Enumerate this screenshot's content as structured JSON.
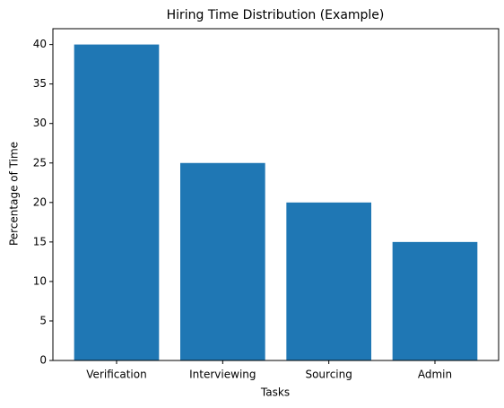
{
  "chart_data": {
    "type": "bar",
    "title": "Hiring Time Distribution (Example)",
    "x_label": "Tasks",
    "y_label": "Percentage of Time",
    "categories": [
      "Verification",
      "Interviewing",
      "Sourcing",
      "Admin"
    ],
    "values": [
      40,
      25,
      20,
      15
    ],
    "color": "#1f77b4",
    "ylim": [
      0,
      42
    ],
    "yticks": [
      0,
      5,
      10,
      15,
      20,
      25,
      30,
      35,
      40
    ]
  }
}
